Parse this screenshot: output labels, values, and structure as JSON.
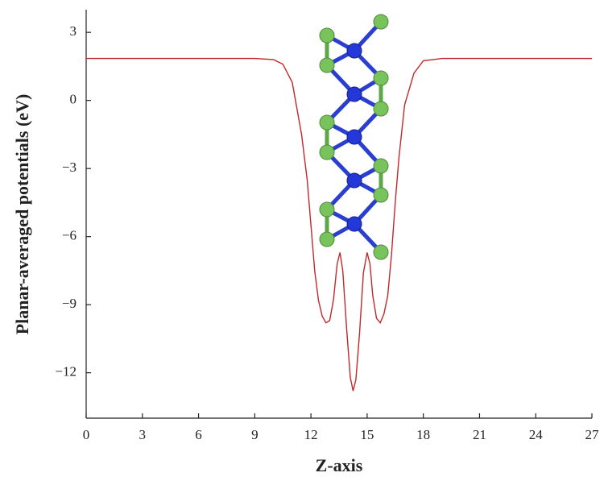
{
  "chart_data": {
    "type": "line",
    "x_label": "Z-axis",
    "y_label": "Planar-averaged potentials (eV)",
    "x": [
      0,
      2,
      4,
      6,
      8,
      9,
      10,
      10.5,
      11,
      11.5,
      11.8,
      12,
      12.2,
      12.4,
      12.6,
      12.8,
      13.0,
      13.2,
      13.4,
      13.55,
      13.7,
      13.9,
      14.1,
      14.25,
      14.4,
      14.6,
      14.8,
      15.0,
      15.15,
      15.3,
      15.5,
      15.7,
      15.9,
      16.1,
      16.3,
      16.5,
      16.7,
      17.0,
      17.5,
      18,
      19,
      21,
      24,
      27
    ],
    "series": [
      {
        "color": "#c0282b",
        "values": [
          1.85,
          1.85,
          1.85,
          1.85,
          1.85,
          1.85,
          1.8,
          1.6,
          0.8,
          -1.5,
          -3.5,
          -5.5,
          -7.5,
          -8.8,
          -9.5,
          -9.8,
          -9.7,
          -8.8,
          -7.2,
          -6.7,
          -7.5,
          -10,
          -12.2,
          -12.8,
          -12.3,
          -10.2,
          -7.6,
          -6.7,
          -7.2,
          -8.6,
          -9.6,
          -9.8,
          -9.4,
          -8.6,
          -6.8,
          -4.5,
          -2.5,
          -0.2,
          1.2,
          1.75,
          1.85,
          1.85,
          1.85,
          1.85
        ]
      }
    ],
    "xlim": [
      0,
      27
    ],
    "xticks": [
      0,
      3,
      6,
      9,
      12,
      15,
      18,
      21,
      24,
      27
    ],
    "ylim": [
      -14,
      4
    ],
    "yticks": [
      {
        "value": -12,
        "label": "−12"
      },
      {
        "value": -9,
        "label": "−9"
      },
      {
        "value": -6,
        "label": "−6"
      },
      {
        "value": -3,
        "label": "−3"
      },
      0,
      3
    ]
  }
}
